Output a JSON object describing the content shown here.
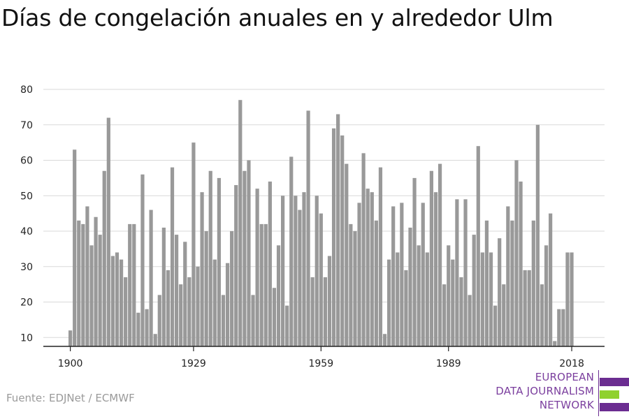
{
  "title": "Días de congelación anuales en y alrededor Ulm",
  "source": "Fuente: EDJNet / ECMWF",
  "logo": {
    "lines": [
      "EUROPEAN",
      "DATA JOURNALISM",
      "NETWORK"
    ],
    "text_color": "#7b3f9e",
    "bar_colors": [
      "#6b2d91",
      "#8fd12e",
      "#6b2d91"
    ]
  },
  "colors": {
    "bar": "#999999",
    "grid": "#d9d9d9",
    "axis": "#222222",
    "tick_text": "#222222"
  },
  "chart_data": {
    "type": "bar",
    "title": "Días de congelación anuales en y alrededor Ulm",
    "xlabel": "",
    "ylabel": "",
    "x_ticks": [
      1900,
      1929,
      1959,
      1989,
      2018
    ],
    "y_ticks": [
      10,
      20,
      30,
      40,
      50,
      60,
      70,
      80
    ],
    "ylim": [
      7.5,
      80
    ],
    "grid": true,
    "first_year": 1900,
    "values": [
      12,
      63,
      43,
      42,
      47,
      36,
      44,
      39,
      57,
      72,
      33,
      34,
      32,
      27,
      42,
      42,
      17,
      56,
      18,
      46,
      11,
      22,
      41,
      29,
      58,
      39,
      25,
      37,
      27,
      65,
      30,
      51,
      40,
      57,
      32,
      55,
      22,
      31,
      40,
      53,
      77,
      57,
      60,
      22,
      52,
      42,
      42,
      54,
      24,
      36,
      50,
      19,
      61,
      50,
      46,
      51,
      74,
      27,
      50,
      45,
      27,
      33,
      69,
      73,
      67,
      59,
      42,
      40,
      48,
      62,
      52,
      51,
      43,
      58,
      11,
      32,
      47,
      34,
      48,
      29,
      41,
      55,
      36,
      48,
      34,
      57,
      51,
      59,
      25,
      36,
      32,
      49,
      27,
      49,
      22,
      39,
      64,
      34,
      43,
      34,
      19,
      38,
      25,
      47,
      43,
      60,
      54,
      29,
      29,
      43,
      70,
      25,
      36,
      45,
      9,
      18,
      18,
      34,
      34
    ]
  }
}
